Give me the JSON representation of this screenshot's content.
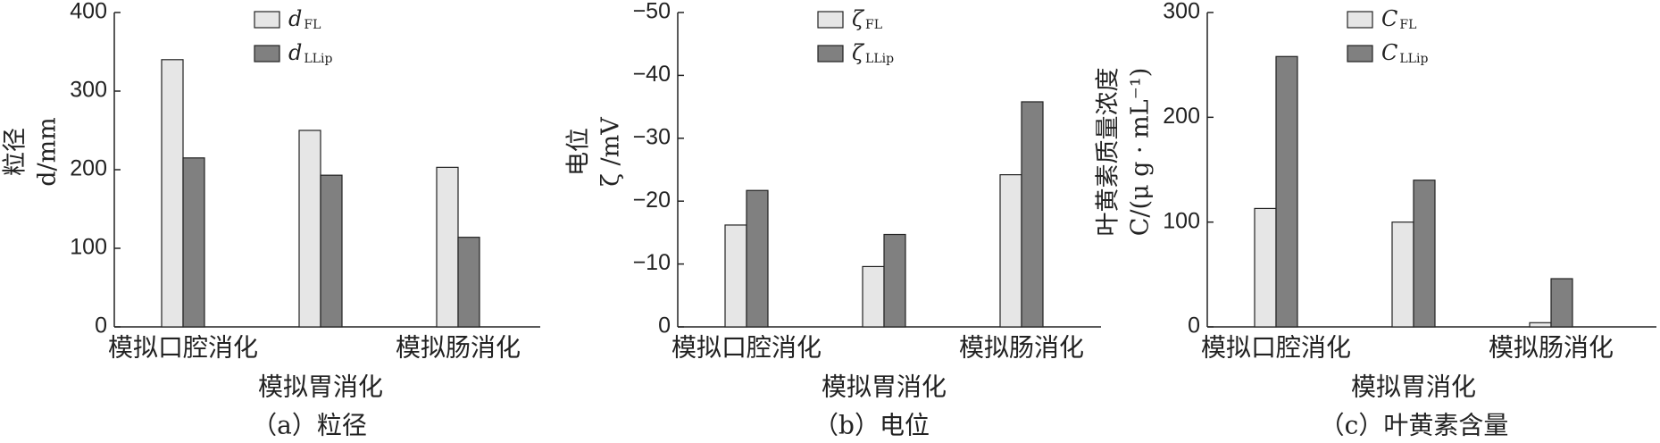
{
  "chart_data": [
    {
      "type": "bar",
      "ylabel": [
        "粒径",
        "d/mm"
      ],
      "caption": "（a）粒径",
      "categories": [
        "模拟口腔消化",
        "模拟胃消化",
        "模拟肠消化"
      ],
      "series": [
        {
          "name": "d",
          "subscript": "FL",
          "color": "#e6e6e6",
          "values": [
            340,
            250,
            203
          ]
        },
        {
          "name": "d",
          "subscript": "LLip",
          "color": "#808080",
          "values": [
            215,
            193,
            114
          ]
        }
      ],
      "ylim": [
        0,
        400
      ],
      "yticks": [
        0,
        100,
        200,
        300,
        400
      ]
    },
    {
      "type": "bar",
      "ylabel": [
        "电位",
        "ζ /mV"
      ],
      "caption": "（b）电位",
      "categories": [
        "模拟口腔消化",
        "模拟胃消化",
        "模拟肠消化"
      ],
      "series": [
        {
          "name": "ζ",
          "subscript": "FL",
          "color": "#e6e6e6",
          "values": [
            -16.2,
            -9.6,
            -24.2
          ]
        },
        {
          "name": "ζ",
          "subscript": "LLip",
          "color": "#808080",
          "values": [
            -21.7,
            -14.7,
            -35.8
          ]
        }
      ],
      "ylim": [
        0,
        -50
      ],
      "yticks": [
        0,
        {
          "value": -10,
          "label": "−10"
        },
        {
          "value": -20,
          "label": "−20"
        },
        {
          "value": -30,
          "label": "−30"
        },
        {
          "value": -40,
          "label": "−40"
        },
        {
          "value": -50,
          "label": "−50"
        }
      ]
    },
    {
      "type": "bar",
      "ylabel": [
        "叶黄素质量浓度",
        "C/(μ g · mL⁻¹)"
      ],
      "caption": "（c）叶黄素含量",
      "categories": [
        "模拟口腔消化",
        "模拟胃消化",
        "模拟肠消化"
      ],
      "series": [
        {
          "name": "C",
          "subscript": "FL",
          "color": "#e6e6e6",
          "values": [
            113,
            100,
            4
          ]
        },
        {
          "name": "C",
          "subscript": "LLip",
          "color": "#808080",
          "values": [
            258,
            140,
            46
          ]
        }
      ],
      "ylim": [
        0,
        300
      ],
      "yticks": [
        0,
        100,
        200,
        300
      ]
    }
  ]
}
